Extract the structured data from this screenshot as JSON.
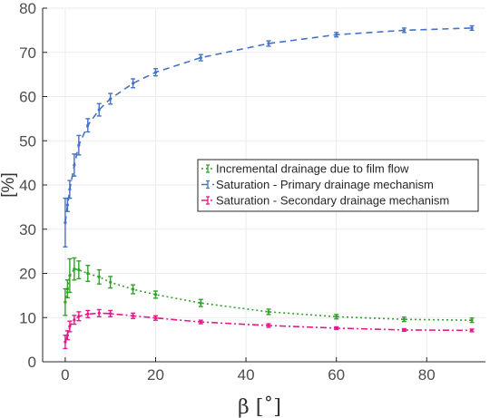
{
  "chart_data": {
    "type": "line",
    "xlabel": "β [˚]",
    "ylabel": "[%]",
    "xlim": [
      -5,
      93
    ],
    "ylim": [
      0,
      80
    ],
    "xticks": [
      0,
      20,
      40,
      60,
      80
    ],
    "yticks": [
      0,
      10,
      20,
      30,
      40,
      50,
      60,
      70,
      80
    ],
    "grid": true,
    "legend_position": "center-right",
    "series": [
      {
        "name": "Incremental drainage due to film flow",
        "color": "#33a02c",
        "dash": "2,3",
        "x": [
          0,
          0.5,
          1,
          2,
          3,
          5,
          7.5,
          10,
          15,
          20,
          30,
          45,
          60,
          75,
          90
        ],
        "y": [
          13.5,
          16.5,
          19.5,
          21.0,
          20.8,
          20.0,
          19.2,
          18.0,
          16.4,
          15.2,
          13.3,
          11.3,
          10.2,
          9.6,
          9.4
        ],
        "err": [
          3.0,
          2.0,
          3.8,
          2.5,
          2.0,
          1.8,
          1.6,
          1.3,
          1.0,
          0.8,
          0.8,
          0.6,
          0.5,
          0.5,
          0.5
        ]
      },
      {
        "name": "Saturation - Primary drainage mechanism",
        "color": "#4472c4",
        "dash": "7,5",
        "x": [
          0,
          0.5,
          1,
          2,
          3,
          5,
          7.5,
          10,
          15,
          20,
          30,
          45,
          60,
          75,
          90
        ],
        "y": [
          31.5,
          35.5,
          39.0,
          44.5,
          49.0,
          53.5,
          57.0,
          59.5,
          63.0,
          65.5,
          68.8,
          72.0,
          74.0,
          75.0,
          75.5
        ],
        "err": [
          5.5,
          1.5,
          2.0,
          2.5,
          2.2,
          1.5,
          1.4,
          1.2,
          1.0,
          0.8,
          0.7,
          0.6,
          0.5,
          0.5,
          0.5
        ]
      },
      {
        "name": "Saturation - Secondary drainage mechanism",
        "color": "#e6198a",
        "dash": "7,3,2,3",
        "x": [
          0,
          0.5,
          1,
          2,
          3,
          5,
          7.5,
          10,
          15,
          20,
          30,
          45,
          60,
          75,
          90
        ],
        "y": [
          4.5,
          6.0,
          8.0,
          9.5,
          10.3,
          10.8,
          11.0,
          10.9,
          10.4,
          9.9,
          9.0,
          8.2,
          7.6,
          7.2,
          7.1
        ],
        "err": [
          1.5,
          1.0,
          1.2,
          1.0,
          1.0,
          0.8,
          0.8,
          0.7,
          0.6,
          0.5,
          0.4,
          0.4,
          0.3,
          0.3,
          0.3
        ]
      }
    ]
  }
}
